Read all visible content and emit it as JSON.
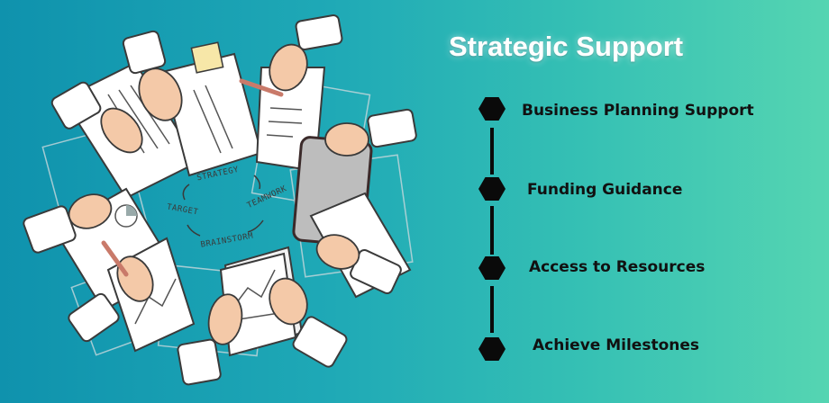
{
  "title": "Strategic Support",
  "items": [
    {
      "label": "Business Planning Support"
    },
    {
      "label": "Funding Guidance"
    },
    {
      "label": "Access to Resources"
    },
    {
      "label": "Achieve Milestones"
    }
  ],
  "illustration": {
    "cycle_words": [
      "STRATEGY",
      "TEAMWORK",
      "BRAINSTORM",
      "TARGET"
    ]
  },
  "colors": {
    "gradient_start": "#0f92ad",
    "gradient_end": "#55d5b2",
    "marker": "#0a0a0a",
    "title": "#ffffff"
  }
}
